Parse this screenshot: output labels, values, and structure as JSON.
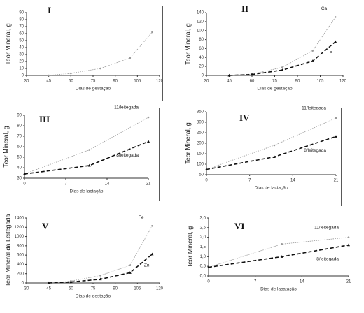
{
  "chart_data": [
    {
      "type": "line",
      "title": "I",
      "ylabel": "Teor Mineral, g",
      "xlabel": "Dias de gestação",
      "xlim": [
        30,
        120
      ],
      "xticks": [
        30,
        45,
        60,
        75,
        90,
        105,
        120
      ],
      "ylim": [
        0,
        90
      ],
      "yticks": [
        0,
        10,
        20,
        30,
        40,
        50,
        60,
        70,
        80,
        90
      ],
      "series": [
        {
          "color": "#999999",
          "style": "dotted",
          "x": [
            45,
            60,
            80,
            100,
            115
          ],
          "values": [
            0,
            3,
            10,
            25,
            62
          ]
        }
      ]
    },
    {
      "type": "line",
      "title": "II",
      "ylabel": "Teor Mineral, g",
      "xlabel": "Dias de gestação",
      "xlim": [
        30,
        120
      ],
      "xticks": [
        30,
        45,
        60,
        75,
        90,
        105,
        120
      ],
      "ylim": [
        0,
        140
      ],
      "yticks": [
        0,
        20,
        40,
        60,
        80,
        100,
        120,
        140
      ],
      "series": [
        {
          "name": "Ca",
          "color": "#999999",
          "style": "dotted",
          "x": [
            45,
            60,
            80,
            100,
            115
          ],
          "values": [
            0,
            3,
            18,
            55,
            130
          ]
        },
        {
          "name": "P",
          "color": "#111111",
          "style": "dashed",
          "x": [
            45,
            60,
            80,
            100,
            115
          ],
          "values": [
            0,
            2,
            12,
            32,
            75
          ]
        }
      ]
    },
    {
      "type": "line",
      "title": "III",
      "ylabel": "Teor Mineral, g",
      "xlabel": "Dias de lactação",
      "xlim": [
        0,
        21
      ],
      "xticks": [
        0,
        7,
        14,
        21
      ],
      "ylim": [
        30,
        90
      ],
      "yticks": [
        30,
        40,
        50,
        60,
        70,
        80,
        90
      ],
      "series": [
        {
          "name": "11/leitegada",
          "color": "#999999",
          "style": "dotted",
          "x": [
            0,
            11,
            21
          ],
          "values": [
            34,
            57,
            88
          ]
        },
        {
          "name": "8/leitegada",
          "color": "#111111",
          "style": "dashed",
          "x": [
            0,
            11,
            21
          ],
          "values": [
            34,
            42,
            65
          ]
        }
      ]
    },
    {
      "type": "line",
      "title": "IV",
      "ylabel": "Teor Mineral, g",
      "xlabel": "Dias de lactação",
      "xlim": [
        0,
        21
      ],
      "xticks": [
        0,
        7,
        14,
        21
      ],
      "ylim": [
        50,
        350
      ],
      "yticks": [
        50,
        100,
        150,
        200,
        250,
        300,
        350
      ],
      "series": [
        {
          "name": "11/leitegada",
          "color": "#999999",
          "style": "dotted",
          "x": [
            0,
            11,
            21
          ],
          "values": [
            75,
            190,
            320
          ]
        },
        {
          "name": "8/leitegada",
          "color": "#111111",
          "style": "dashed",
          "x": [
            0,
            11,
            21
          ],
          "values": [
            75,
            135,
            232
          ]
        }
      ]
    },
    {
      "type": "line",
      "title": "V",
      "ylabel": "Teor Mineral da Leitegada",
      "xlabel": "Dias de gestação",
      "xlim": [
        30,
        120
      ],
      "xticks": [
        30,
        45,
        60,
        75,
        90,
        105,
        120
      ],
      "ylim": [
        0,
        1400
      ],
      "yticks": [
        0,
        200,
        400,
        600,
        800,
        1000,
        1200,
        1400
      ],
      "series": [
        {
          "name": "Fe",
          "color": "#999999",
          "style": "dotted",
          "x": [
            45,
            60,
            80,
            100,
            115
          ],
          "values": [
            0,
            40,
            160,
            380,
            1230
          ]
        },
        {
          "name": "Zn",
          "color": "#111111",
          "style": "dashed",
          "x": [
            45,
            60,
            80,
            100,
            115
          ],
          "values": [
            0,
            20,
            80,
            220,
            620
          ]
        }
      ]
    },
    {
      "type": "line",
      "title": "VI",
      "ylabel": "Teor Mineral, g",
      "xlabel": "Dias de lacatação",
      "xlim": [
        0,
        21
      ],
      "xticks": [
        0,
        7,
        14,
        21
      ],
      "ylim": [
        0,
        3
      ],
      "yticks": [
        {
          "value": 0,
          "label": "0,0"
        },
        {
          "value": 0.5,
          "label": "0,5"
        },
        {
          "value": 1,
          "label": "1,0"
        },
        {
          "value": 1.5,
          "label": "1,5"
        },
        {
          "value": 2,
          "label": "2,0"
        },
        {
          "value": 2.5,
          "label": "2,5"
        },
        {
          "value": 3,
          "label": "3,0"
        }
      ],
      "series": [
        {
          "name": "11/leitegada",
          "color": "#999999",
          "style": "dotted",
          "x": [
            0,
            11,
            21
          ],
          "values": [
            0.45,
            1.65,
            2.0
          ]
        },
        {
          "name": "8/leitegada",
          "color": "#111111",
          "style": "dashed",
          "x": [
            0,
            11,
            21
          ],
          "values": [
            0.45,
            1.0,
            1.6
          ]
        }
      ]
    }
  ]
}
